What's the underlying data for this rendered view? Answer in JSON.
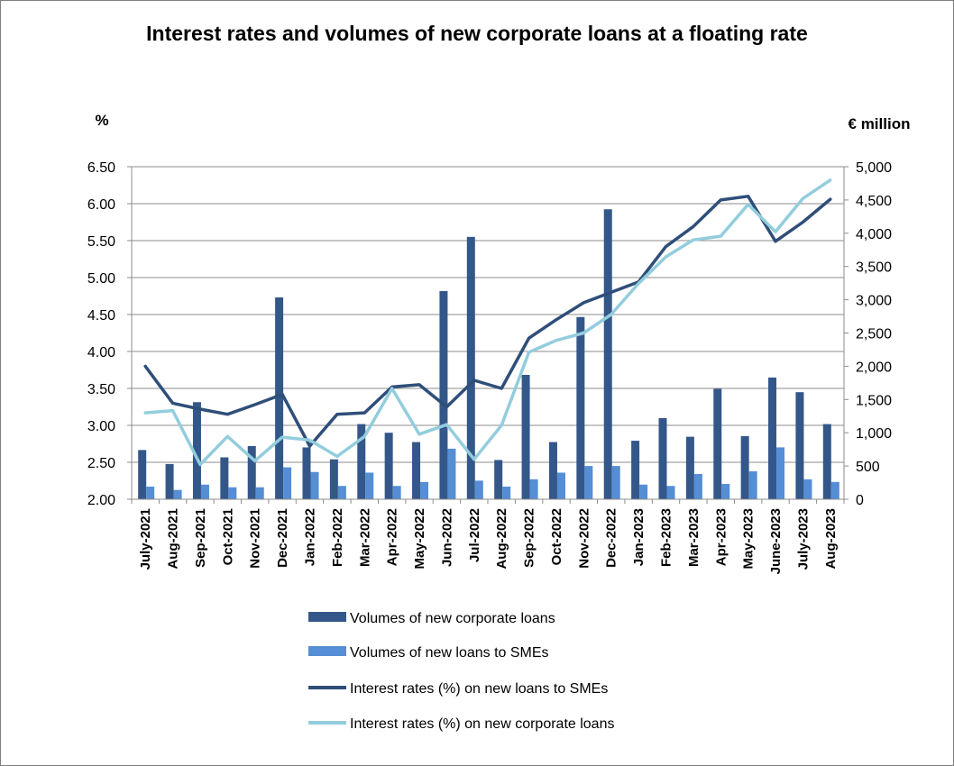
{
  "chart_data": {
    "type": "bar+line",
    "title": "Interest rates and volumes of new corporate loans at a floating rate",
    "ylabel_left": "%",
    "ylabel_right": "€ million",
    "ylim_left": [
      2.0,
      6.5
    ],
    "ylim_right": [
      0,
      5000
    ],
    "yticks_left": [
      "2.00",
      "2.50",
      "3.00",
      "3.50",
      "4.00",
      "4.50",
      "5.00",
      "5.50",
      "6.00",
      "6.50"
    ],
    "yticks_right": [
      "0",
      "500",
      "1,000",
      "1,500",
      "2,000",
      "2,500",
      "3,000",
      "3,500",
      "4,000",
      "4,500",
      "5,000"
    ],
    "categories": [
      "July-2021",
      "Aug-2021",
      "Sep-2021",
      "Oct-2021",
      "Nov-2021",
      "Dec-2021",
      "Jan-2022",
      "Feb-2022",
      "Mar-2022",
      "Apr-2022",
      "May-2022",
      "Jun-2022",
      "Jul-2022",
      "Aug-2022",
      "Sep-2022",
      "Oct-2022",
      "Nov-2022",
      "Dec-2022",
      "Jan-2023",
      "Feb-2023",
      "Mar-2023",
      "Apr-2023",
      "May-2023",
      "June-2023",
      "July-2023",
      "Aug-2023"
    ],
    "series": [
      {
        "name": "Volumes of new corporate loans",
        "kind": "bar",
        "axis": "right",
        "color": "#34578a",
        "values": [
          740,
          530,
          1460,
          630,
          800,
          3035,
          780,
          600,
          1130,
          1000,
          860,
          3130,
          3945,
          590,
          1870,
          860,
          2740,
          4360,
          880,
          1220,
          940,
          1660,
          950,
          1830,
          1610,
          1130
        ]
      },
      {
        "name": "Volumes of new loans to SMEs",
        "kind": "bar",
        "axis": "right",
        "color": "#558ed5",
        "values": [
          190,
          140,
          220,
          180,
          180,
          480,
          410,
          200,
          400,
          200,
          260,
          760,
          280,
          190,
          300,
          400,
          500,
          500,
          220,
          200,
          380,
          230,
          420,
          780,
          300,
          260
        ]
      },
      {
        "name": "Interest rates (%) on new loans to SMEs",
        "kind": "line",
        "axis": "left",
        "color": "#2f4e79",
        "values": [
          3.8,
          3.3,
          3.22,
          3.15,
          3.28,
          3.42,
          2.72,
          3.15,
          3.17,
          3.52,
          3.55,
          3.25,
          3.61,
          3.5,
          4.18,
          4.43,
          4.66,
          4.8,
          4.94,
          5.42,
          5.69,
          6.05,
          6.1,
          5.49,
          5.75,
          6.06
        ]
      },
      {
        "name": "Interest rates (%) on new corporate loans",
        "kind": "line",
        "axis": "left",
        "color": "#93cddd",
        "values": [
          3.17,
          3.2,
          2.47,
          2.85,
          2.52,
          2.84,
          2.8,
          2.58,
          2.85,
          3.5,
          2.88,
          3.01,
          2.54,
          3.0,
          3.99,
          4.15,
          4.25,
          4.5,
          4.92,
          5.28,
          5.51,
          5.56,
          5.99,
          5.62,
          6.07,
          6.32
        ]
      }
    ],
    "legend_position": "bottom",
    "grid": true
  }
}
